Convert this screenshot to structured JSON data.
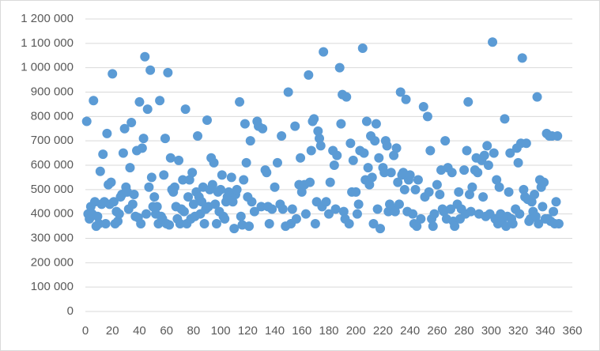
{
  "chart_data": {
    "type": "scatter",
    "color": "#5b9bd5",
    "grid": true,
    "xlim": [
      0,
      360
    ],
    "xticks": [
      0,
      20,
      40,
      60,
      80,
      100,
      120,
      140,
      160,
      180,
      200,
      220,
      240,
      260,
      280,
      300,
      320,
      340,
      360
    ],
    "ylim": [
      0,
      1200000
    ],
    "yticks": [
      0,
      {
        "value": 100000,
        "label": "100 000"
      },
      {
        "value": 200000,
        "label": "200 000"
      },
      {
        "value": 300000,
        "label": "300 000"
      },
      {
        "value": 400000,
        "label": "400 000"
      },
      {
        "value": 500000,
        "label": "500 000"
      },
      {
        "value": 600000,
        "label": "600 000"
      },
      {
        "value": 700000,
        "label": "700 000"
      },
      {
        "value": 800000,
        "label": "800 000"
      },
      {
        "value": 900000,
        "label": "900 000"
      },
      {
        "value": 1000000,
        "label": "1 000 000"
      },
      {
        "value": 1100000,
        "label": "1 100 000"
      },
      {
        "value": 1200000,
        "label": "1 200 000"
      }
    ],
    "x": [
      1,
      2,
      3,
      4,
      5,
      6,
      7,
      8,
      9,
      10,
      11,
      12,
      13,
      14,
      15,
      16,
      17,
      18,
      19,
      20,
      21,
      22,
      23,
      24,
      25,
      26,
      27,
      28,
      29,
      30,
      31,
      32,
      33,
      34,
      35,
      36,
      37,
      38,
      39,
      40,
      41,
      42,
      43,
      44,
      45,
      46,
      47,
      48,
      49,
      50,
      51,
      52,
      53,
      54,
      55,
      56,
      57,
      58,
      59,
      60,
      61,
      62,
      63,
      64,
      65,
      66,
      67,
      68,
      69,
      70,
      71,
      72,
      73,
      74,
      75,
      76,
      77,
      78,
      79,
      80,
      81,
      82,
      83,
      84,
      85,
      86,
      87,
      88,
      89,
      90,
      91,
      92,
      93,
      94,
      95,
      96,
      97,
      98,
      99,
      100,
      101,
      102,
      103,
      104,
      105,
      106,
      108,
      109,
      110,
      111,
      112,
      114,
      115,
      116,
      117,
      118,
      119,
      120,
      121,
      122,
      123,
      125,
      127,
      128,
      130,
      131,
      133,
      134,
      135,
      136,
      138,
      140,
      142,
      144,
      145,
      146,
      148,
      150,
      152,
      153,
      155,
      156,
      158,
      159,
      160,
      162,
      163,
      165,
      166,
      167,
      168,
      169,
      170,
      171,
      172,
      173,
      174,
      175,
      176,
      178,
      180,
      181,
      183,
      184,
      185,
      186,
      188,
      189,
      190,
      191,
      192,
      193,
      195,
      196,
      197,
      198,
      200,
      201,
      202,
      203,
      205,
      206,
      207,
      208,
      209,
      210,
      211,
      212,
      213,
      214,
      215,
      216,
      217,
      218,
      220,
      221,
      222,
      223,
      224,
      225,
      226,
      227,
      228,
      229,
      230,
      231,
      232,
      233,
      234,
      235,
      236,
      237,
      238,
      239,
      240,
      242,
      243,
      244,
      245,
      246,
      248,
      250,
      251,
      253,
      254,
      255,
      256,
      257,
      258,
      260,
      262,
      263,
      264,
      265,
      266,
      267,
      268,
      270,
      271,
      272,
      273,
      275,
      276,
      277,
      278,
      280,
      281,
      282,
      283,
      284,
      285,
      286,
      288,
      289,
      290,
      291,
      293,
      294,
      295,
      296,
      297,
      298,
      299,
      301,
      302,
      303,
      304,
      305,
      306,
      307,
      308,
      310,
      311,
      312,
      313,
      314,
      315,
      316,
      318,
      319,
      320,
      321,
      322,
      323,
      324,
      325,
      326,
      327,
      328,
      329,
      330,
      331,
      332,
      333,
      334,
      335,
      336,
      337,
      338,
      339,
      340,
      341,
      342,
      343,
      344,
      345,
      346,
      347,
      348,
      349,
      350
    ],
    "values": [
      780000,
      400000,
      380000,
      430000,
      400000,
      865000,
      450000,
      350000,
      390000,
      360000,
      575000,
      440000,
      645000,
      450000,
      360000,
      730000,
      520000,
      440000,
      530000,
      975000,
      450000,
      360000,
      410000,
      370000,
      400000,
      470000,
      480000,
      650000,
      750000,
      510000,
      490000,
      420000,
      590000,
      775000,
      440000,
      480000,
      390000,
      660000,
      385000,
      860000,
      360000,
      670000,
      710000,
      1045000,
      400000,
      830000,
      510000,
      990000,
      550000,
      430000,
      470000,
      400000,
      430000,
      360000,
      865000,
      390000,
      380000,
      560000,
      710000,
      360000,
      980000,
      355000,
      630000,
      500000,
      490000,
      510000,
      430000,
      380000,
      620000,
      360000,
      420000,
      540000,
      410000,
      830000,
      360000,
      470000,
      540000,
      380000,
      570000,
      440000,
      390000,
      490000,
      720000,
      470000,
      400000,
      450000,
      510000,
      360000,
      420000,
      785000,
      430000,
      500000,
      630000,
      520000,
      610000,
      440000,
      360000,
      490000,
      410000,
      500000,
      560000,
      390000,
      380000,
      450000,
      470000,
      490000,
      550000,
      450000,
      340000,
      480000,
      500000,
      860000,
      390000,
      355000,
      540000,
      770000,
      610000,
      470000,
      350000,
      700000,
      450000,
      410000,
      780000,
      760000,
      430000,
      750000,
      580000,
      570000,
      430000,
      360000,
      420000,
      510000,
      610000,
      440000,
      720000,
      420000,
      350000,
      900000,
      360000,
      420000,
      760000,
      380000,
      520000,
      630000,
      490000,
      520000,
      400000,
      970000,
      530000,
      660000,
      780000,
      790000,
      360000,
      450000,
      740000,
      710000,
      680000,
      430000,
      1065000,
      450000,
      400000,
      530000,
      660000,
      600000,
      420000,
      640000,
      1000000,
      770000,
      890000,
      410000,
      380000,
      880000,
      360000,
      690000,
      490000,
      620000,
      490000,
      400000,
      440000,
      660000,
      1080000,
      650000,
      540000,
      780000,
      590000,
      520000,
      720000,
      550000,
      360000,
      700000,
      770000,
      420000,
      630000,
      340000,
      590000,
      570000,
      700000,
      680000,
      410000,
      440000,
      570000,
      420000,
      640000,
      410000,
      670000,
      530000,
      440000,
      900000,
      560000,
      570000,
      500000,
      870000,
      410000,
      540000,
      560000,
      400000,
      360000,
      500000,
      350000,
      540000,
      380000,
      840000,
      470000,
      800000,
      490000,
      660000,
      380000,
      350000,
      400000,
      520000,
      480000,
      580000,
      420000,
      410000,
      700000,
      380000,
      590000,
      420000,
      570000,
      370000,
      350000,
      440000,
      490000,
      380000,
      420000,
      580000,
      400000,
      660000,
      860000,
      480000,
      410000,
      510000,
      580000,
      630000,
      570000,
      400000,
      620000,
      470000,
      640000,
      390000,
      680000,
      600000,
      400000,
      1105000,
      650000,
      380000,
      540000,
      360000,
      510000,
      400000,
      370000,
      790000,
      350000,
      390000,
      490000,
      650000,
      380000,
      360000,
      420000,
      670000,
      610000,
      400000,
      690000,
      1040000,
      500000,
      470000,
      690000,
      460000,
      370000,
      380000,
      450000,
      410000,
      480000,
      390000,
      880000,
      360000,
      540000,
      510000,
      430000,
      530000,
      380000,
      730000,
      380000,
      720000,
      370000,
      720000,
      410000,
      360000,
      450000,
      720000,
      360000
    ]
  }
}
